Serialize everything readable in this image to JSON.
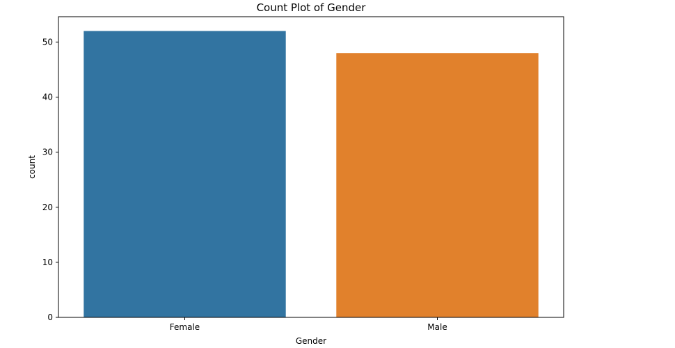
{
  "chart_data": {
    "type": "bar",
    "title": "Count Plot of Gender",
    "xlabel": "Gender",
    "ylabel": "count",
    "categories": [
      "Female",
      "Male"
    ],
    "values": [
      52,
      48
    ],
    "colors": [
      "#3274a1",
      "#e1812c"
    ],
    "ylim": [
      0,
      54.6
    ],
    "yticks": [
      0,
      10,
      20,
      30,
      40,
      50
    ],
    "grid": false
  }
}
